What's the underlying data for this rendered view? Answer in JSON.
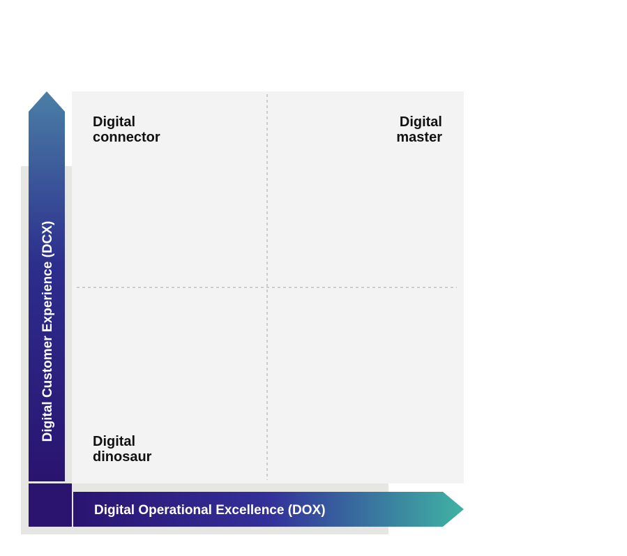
{
  "quadrants": {
    "top_left": [
      "Digital",
      "connector"
    ],
    "top_right": [
      "Digital",
      "master"
    ],
    "bottom_left": [
      "Digital",
      "dinosaur"
    ]
  },
  "axes": {
    "y": "Digital Customer Experience (DCX)",
    "x": "Digital Operational Excellence (DOX)"
  }
}
